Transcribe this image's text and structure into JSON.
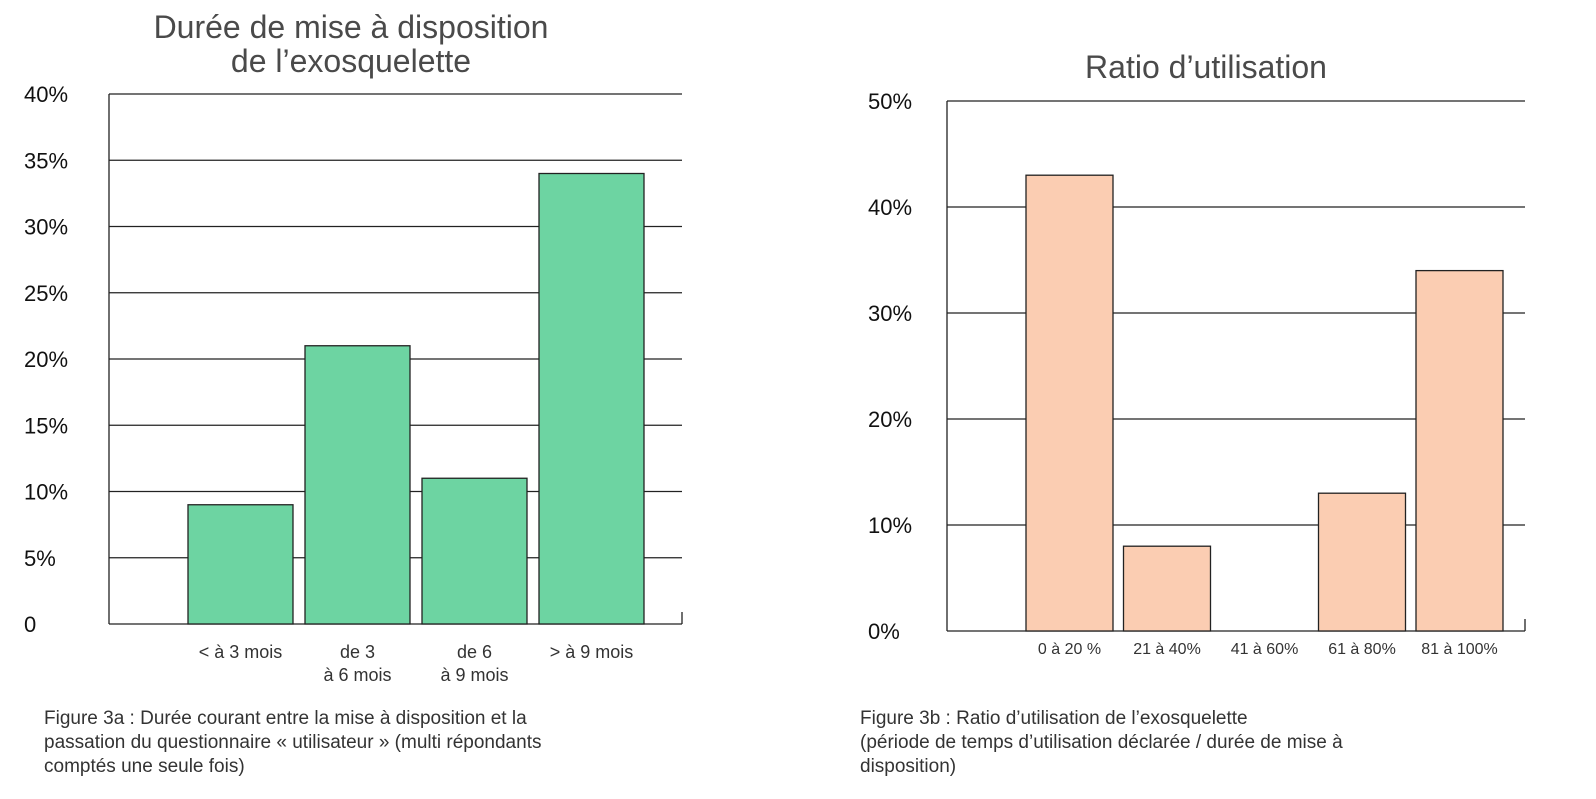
{
  "chart_data": [
    {
      "type": "bar",
      "title_lines": [
        "Durée de mise à disposition",
        "de l’exosquelette"
      ],
      "categories": [
        "< à 3 mois",
        "de 3 à 6 mois",
        "de 6 à 9 mois",
        "> à 9 mois"
      ],
      "category_lines": [
        [
          "< à 3 mois"
        ],
        [
          "de 3",
          "à 6 mois"
        ],
        [
          "de 6",
          "à 9 mois"
        ],
        [
          "> à 9 mois"
        ]
      ],
      "values": [
        9,
        21,
        11,
        34
      ],
      "ylim": [
        0,
        40
      ],
      "yticks": [
        0,
        5,
        10,
        15,
        20,
        25,
        30,
        35,
        40
      ],
      "ytick_labels": [
        "0",
        "5%",
        "10%",
        "15%",
        "20%",
        "25%",
        "30%",
        "35%",
        "40%"
      ],
      "grid": true,
      "color": "#6dd4a2",
      "caption": [
        "Figure 3a : Durée courant entre la mise à disposition et la",
        "passation du questionnaire « utilisateur » (multi répondants",
        "comptés une seule fois)"
      ]
    },
    {
      "type": "bar",
      "title_lines": [
        "Ratio d’utilisation"
      ],
      "categories": [
        "0 à 20 %",
        "21 à 40%",
        "41 à 60%",
        "61 à 80%",
        "81 à 100%"
      ],
      "category_lines": [
        [
          "0 à 20 %"
        ],
        [
          "21 à 40%"
        ],
        [
          "41 à 60%"
        ],
        [
          "61 à 80%"
        ],
        [
          "81 à 100%"
        ]
      ],
      "values": [
        43,
        8,
        0,
        13,
        34
      ],
      "ylim": [
        0,
        50
      ],
      "yticks": [
        0,
        10,
        20,
        30,
        40,
        50
      ],
      "ytick_labels": [
        "0%",
        "10%",
        "20%",
        "30%",
        "40%",
        "50%"
      ],
      "grid": true,
      "color": "#fbcdb2",
      "caption": [
        "Figure 3b : Ratio d’utilisation de l’exosquelette",
        "(période de temps d’utilisation déclarée / durée de mise à",
        "disposition)"
      ]
    }
  ]
}
